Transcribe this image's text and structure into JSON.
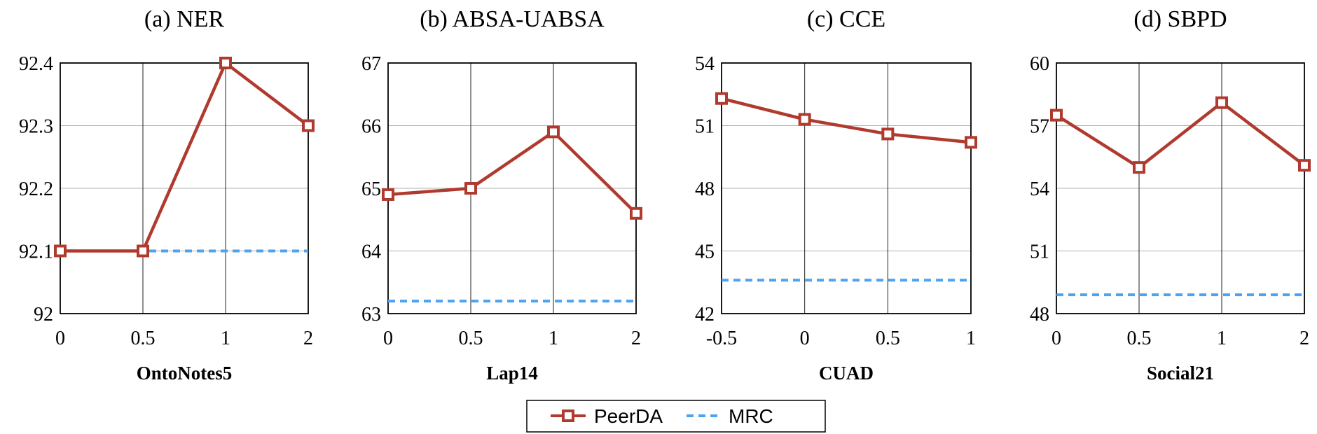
{
  "colors": {
    "peerda": "#b03a2e",
    "mrc": "#4da3f0",
    "grid": "#b0b0b0",
    "axis": "#000000"
  },
  "legend": {
    "peerda_label": "PeerDA",
    "mrc_label": "MRC"
  },
  "chart_data": [
    {
      "type": "line",
      "title": "(a) NER",
      "xlabel": "OntoNotes5",
      "ylabel": "",
      "categories": [
        "0",
        "0.5",
        "1",
        "2"
      ],
      "yticks": [
        "92",
        "92.1",
        "92.2",
        "92.3",
        "92.4"
      ],
      "ylim": [
        92,
        92.4
      ],
      "series": [
        {
          "name": "PeerDA",
          "values": [
            92.1,
            92.1,
            92.4,
            92.3
          ]
        },
        {
          "name": "MRC",
          "values": [
            92.1,
            92.1,
            92.1,
            92.1
          ],
          "start_index": 0.5
        }
      ]
    },
    {
      "type": "line",
      "title": "(b) ABSA-UABSA",
      "xlabel": "Lap14",
      "ylabel": "",
      "categories": [
        "0",
        "0.5",
        "1",
        "2"
      ],
      "yticks": [
        "63",
        "64",
        "65",
        "66",
        "67"
      ],
      "ylim": [
        63,
        67
      ],
      "series": [
        {
          "name": "PeerDA",
          "values": [
            64.9,
            65.0,
            65.9,
            64.6
          ]
        },
        {
          "name": "MRC",
          "values": [
            63.2,
            63.2,
            63.2,
            63.2
          ]
        }
      ]
    },
    {
      "type": "line",
      "title": "(c) CCE",
      "xlabel": "CUAD",
      "ylabel": "",
      "categories": [
        "-0.5",
        "0",
        "0.5",
        "1"
      ],
      "yticks": [
        "42",
        "45",
        "48",
        "51",
        "54"
      ],
      "ylim": [
        42,
        54
      ],
      "series": [
        {
          "name": "PeerDA",
          "values": [
            52.3,
            51.3,
            50.6,
            50.2
          ]
        },
        {
          "name": "MRC",
          "values": [
            43.6,
            43.6,
            43.6,
            43.6
          ]
        }
      ]
    },
    {
      "type": "line",
      "title": "(d) SBPD",
      "xlabel": "Social21",
      "ylabel": "",
      "categories": [
        "0",
        "0.5",
        "1",
        "2"
      ],
      "yticks": [
        "48",
        "51",
        "54",
        "57",
        "60"
      ],
      "ylim": [
        48,
        60
      ],
      "series": [
        {
          "name": "PeerDA",
          "values": [
            57.5,
            55.0,
            58.1,
            55.1
          ]
        },
        {
          "name": "MRC",
          "values": [
            48.9,
            48.9,
            48.9,
            48.9
          ]
        }
      ]
    }
  ]
}
